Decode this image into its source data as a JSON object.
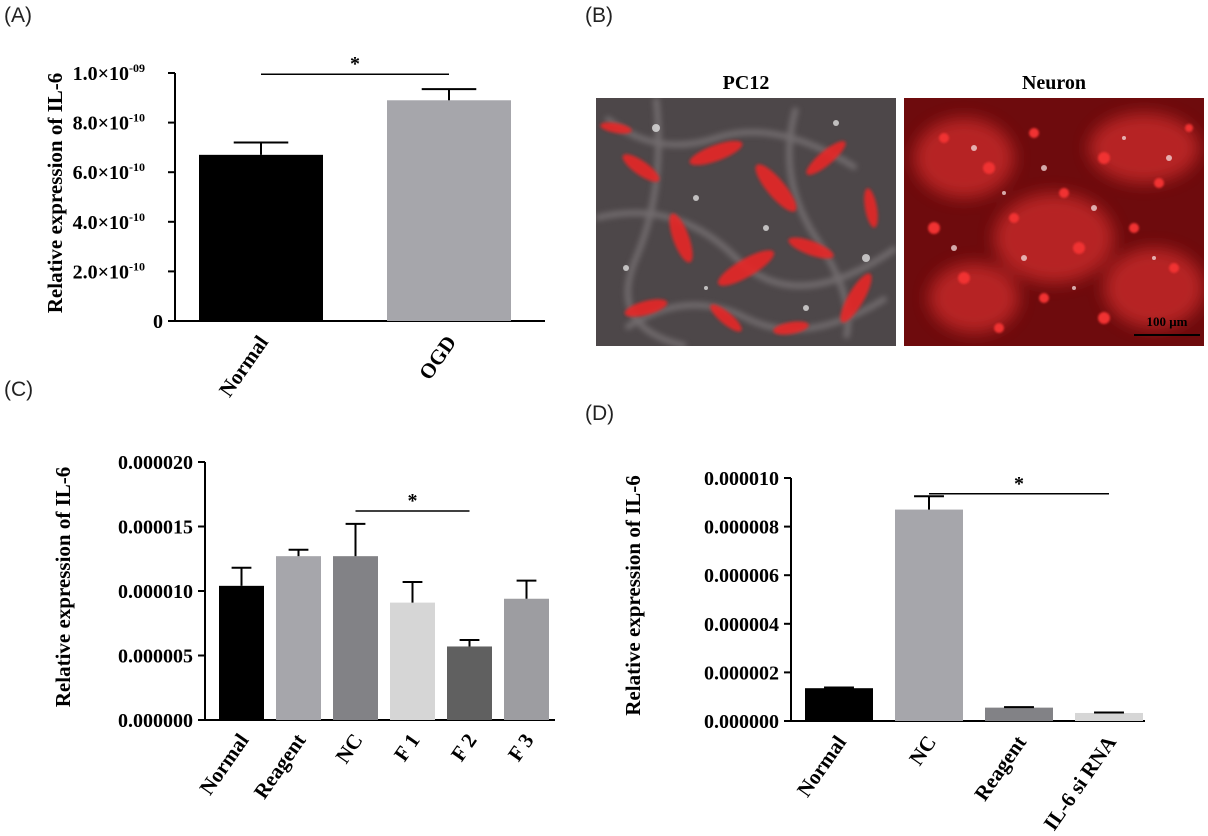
{
  "panels": {
    "a": {
      "letter": "(A)"
    },
    "b": {
      "letter": "(B)",
      "images": [
        {
          "title": "PC12"
        },
        {
          "title": "Neuron",
          "scale_bar": "100 μm"
        }
      ]
    },
    "c": {
      "letter": "(C)"
    },
    "d": {
      "letter": "(D)"
    }
  },
  "colors": {
    "black": "#000000",
    "gray_light": "#a6a6ab",
    "gray_mid": "#828286",
    "gray_pale": "#d6d6d6",
    "gray_dark": "#606060",
    "gray_d3": "#9d9da1"
  },
  "chart_data": [
    {
      "id": "A",
      "type": "bar",
      "ylabel": "Relative expression of IL-6",
      "ylim": [
        0,
        1e-09
      ],
      "yticks": [
        0,
        2e-10,
        4e-10,
        6e-10,
        8e-10,
        1e-09
      ],
      "ytick_labels": [
        {
          "m": "0",
          "e": ""
        },
        {
          "m": "2.0×10",
          "e": "-10"
        },
        {
          "m": "4.0×10",
          "e": "-10"
        },
        {
          "m": "6.0×10",
          "e": "-10"
        },
        {
          "m": "8.0×10",
          "e": "-10"
        },
        {
          "m": "1.0×10",
          "e": "-09"
        }
      ],
      "categories": [
        "Normal",
        "OGD"
      ],
      "values": [
        6.7e-10,
        8.9e-10
      ],
      "errors": [
        5e-11,
        4.5e-11
      ],
      "colors": [
        "#000000",
        "#a6a6ab"
      ],
      "significance": [
        {
          "from": 0,
          "to": 1,
          "label": "*",
          "y": 9.95e-10
        }
      ]
    },
    {
      "id": "C",
      "type": "bar",
      "ylabel": "Relative expression of IL-6",
      "ylim": [
        0,
        2e-05
      ],
      "yticks": [
        0,
        5e-06,
        1e-05,
        1.5e-05,
        2e-05
      ],
      "ytick_labels": [
        {
          "m": "0.000000",
          "e": ""
        },
        {
          "m": "0.000005",
          "e": ""
        },
        {
          "m": "0.000010",
          "e": ""
        },
        {
          "m": "0.000015",
          "e": ""
        },
        {
          "m": "0.000020",
          "e": ""
        }
      ],
      "categories": [
        "Normal",
        "Reagent",
        "NC",
        "F 1",
        "F 2",
        "F 3"
      ],
      "values": [
        1.04e-05,
        1.27e-05,
        1.27e-05,
        9.1e-06,
        5.7e-06,
        9.4e-06
      ],
      "errors": [
        1.4e-06,
        5e-07,
        2.5e-06,
        1.6e-06,
        5e-07,
        1.4e-06
      ],
      "colors": [
        "#000000",
        "#a6a6ab",
        "#828286",
        "#d6d6d6",
        "#606060",
        "#9d9da1"
      ],
      "significance": [
        {
          "from": 2,
          "to": 4,
          "label": "*",
          "y": 1.62e-05
        }
      ]
    },
    {
      "id": "D",
      "type": "bar",
      "ylabel": "Relative expression of IL-6",
      "ylim": [
        0,
        1e-05
      ],
      "yticks": [
        0,
        2e-06,
        4e-06,
        6e-06,
        8e-06,
        1e-05
      ],
      "ytick_labels": [
        {
          "m": "0.000000",
          "e": ""
        },
        {
          "m": "0.000002",
          "e": ""
        },
        {
          "m": "0.000004",
          "e": ""
        },
        {
          "m": "0.000006",
          "e": ""
        },
        {
          "m": "0.000008",
          "e": ""
        },
        {
          "m": "0.000010",
          "e": ""
        }
      ],
      "categories": [
        "Normal",
        "NC",
        "Reagent",
        "IL-6 si RNA"
      ],
      "values": [
        1.35e-06,
        8.7e-06,
        5.5e-07,
        3.3e-07
      ],
      "errors": [
        3e-08,
        5.5e-07,
        2e-08,
        2e-08
      ],
      "colors": [
        "#000000",
        "#a6a6ab",
        "#828286",
        "#d6d6d6"
      ],
      "significance": [
        {
          "from": 1,
          "to": 3,
          "label": "*",
          "y": 9.35e-06
        }
      ]
    }
  ]
}
